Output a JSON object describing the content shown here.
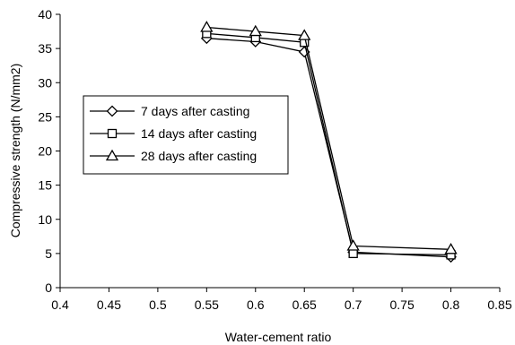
{
  "chart_data": {
    "type": "line",
    "title": "",
    "xlabel": "Water-cement ratio",
    "ylabel": "Compressive strength (N/mm2)",
    "xlim": [
      0.4,
      0.85
    ],
    "ylim": [
      0,
      40
    ],
    "xticks": [
      0.4,
      0.45,
      0.5,
      0.55,
      0.6,
      0.65,
      0.7,
      0.75,
      0.8,
      0.85
    ],
    "xtick_labels": [
      "0.4",
      "0.45",
      "0.5",
      "0.55",
      "0.6",
      "0.65",
      "0.7",
      "0.75",
      "0.8",
      "0.85"
    ],
    "yticks": [
      0,
      5,
      10,
      15,
      20,
      25,
      30,
      35,
      40
    ],
    "ytick_labels": [
      "0",
      "5",
      "10",
      "15",
      "20",
      "25",
      "30",
      "35",
      "40"
    ],
    "grid": false,
    "legend_position": "left-center",
    "series": [
      {
        "name": "7 days after casting",
        "marker": "diamond",
        "x": [
          0.55,
          0.6,
          0.65,
          0.7,
          0.8
        ],
        "y": [
          36.5,
          36.0,
          34.5,
          5.2,
          4.5
        ]
      },
      {
        "name": "14 days after casting",
        "marker": "square",
        "x": [
          0.55,
          0.6,
          0.65,
          0.7,
          0.8
        ],
        "y": [
          37.2,
          36.6,
          35.9,
          5.0,
          4.8
        ]
      },
      {
        "name": "28 days after casting",
        "marker": "triangle",
        "x": [
          0.55,
          0.6,
          0.65,
          0.7,
          0.8
        ],
        "y": [
          38.1,
          37.5,
          36.9,
          6.1,
          5.6
        ]
      }
    ],
    "line_color": "#000000",
    "marker_fill": "#ffffff"
  }
}
